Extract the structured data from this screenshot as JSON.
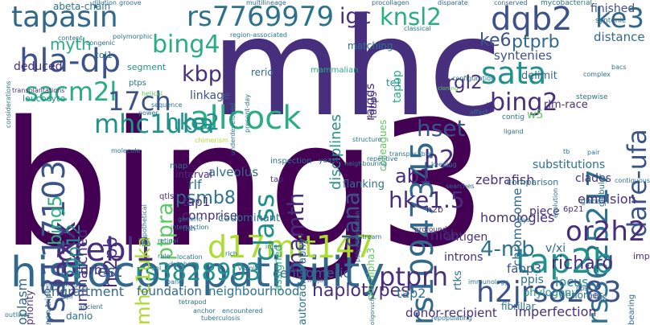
{
  "palette": {
    "dark_purple": "#440154",
    "indigo": "#472f7d",
    "blue": "#3b528b",
    "steel_blue": "#31688e",
    "teal_blue": "#2c728e",
    "teal": "#21918c",
    "green_teal": "#28ae80",
    "green": "#5ec962",
    "yellow_green": "#addc30",
    "light_green": "#90d743"
  },
  "words": [
    {
      "text": "bing3"
    },
    {
      "text": "mhc"
    },
    {
      "text": "histocompatibility"
    },
    {
      "text": "tapasin"
    },
    {
      "text": "rs7769979"
    },
    {
      "text": "hla-dp"
    },
    {
      "text": "dqb2"
    },
    {
      "text": "rs10947345"
    },
    {
      "text": "rs3625217"
    },
    {
      "text": "sata"
    },
    {
      "text": "ke3"
    },
    {
      "text": "allcock"
    },
    {
      "text": "d17mit147"
    },
    {
      "text": "crebl1"
    },
    {
      "text": "tap2b"
    },
    {
      "text": "rs3117103"
    },
    {
      "text": "rs3828903"
    },
    {
      "text": "h2jrs8283"
    },
    {
      "text": "daxx"
    },
    {
      "text": "sacm2l"
    },
    {
      "text": "mhc1uba"
    },
    {
      "text": "17ch"
    },
    {
      "text": "bing4"
    },
    {
      "text": "kbp"
    },
    {
      "text": "knsl2"
    },
    {
      "text": "dare-ufa"
    },
    {
      "text": "bing2"
    },
    {
      "text": "rgl2"
    },
    {
      "text": "igc"
    },
    {
      "text": "ke6"
    },
    {
      "text": "ptprb"
    },
    {
      "text": "hke2"
    },
    {
      "text": "hset"
    },
    {
      "text": "class"
    },
    {
      "text": "ptpra"
    },
    {
      "text": "mhc1uka"
    },
    {
      "text": "mamth"
    },
    {
      "text": "dana"
    },
    {
      "text": "h2"
    },
    {
      "text": "or2h2"
    },
    {
      "text": "hke1.5"
    },
    {
      "text": "ptprh"
    },
    {
      "text": "4-mb"
    },
    {
      "text": "richard"
    },
    {
      "text": "ab1"
    },
    {
      "text": "psmb8"
    },
    {
      "text": "h-2pb"
    },
    {
      "text": "20p12"
    },
    {
      "text": "bing5"
    },
    {
      "text": "myth"
    },
    {
      "text": "deduced"
    },
    {
      "text": "unmatched"
    },
    {
      "text": "est"
    },
    {
      "text": "drb1"
    },
    {
      "text": "centromeric"
    },
    {
      "text": "engraftment"
    },
    {
      "text": "foundation"
    },
    {
      "text": "neighbourhood"
    },
    {
      "text": "haplotypes"
    },
    {
      "text": "tap2"
    },
    {
      "text": "donor-recipient"
    },
    {
      "text": "imperfection"
    },
    {
      "text": "emulsion"
    },
    {
      "text": "homologies"
    },
    {
      "text": "micb"
    },
    {
      "text": "introns"
    },
    {
      "text": "zebrafish"
    },
    {
      "text": "chromosome"
    },
    {
      "text": "distance"
    },
    {
      "text": "syntenies"
    },
    {
      "text": "tapbp"
    },
    {
      "text": "ralgds"
    },
    {
      "text": "linkage"
    },
    {
      "text": "alveolus"
    },
    {
      "text": "disciplines"
    },
    {
      "text": "w5"
    },
    {
      "text": "rlm-race"
    },
    {
      "text": "delimit"
    },
    {
      "text": "fabp3"
    },
    {
      "text": "ppis"
    },
    {
      "text": "v/xi"
    },
    {
      "text": "locus"
    },
    {
      "text": "piece"
    },
    {
      "text": "clades"
    },
    {
      "text": "substitutions"
    },
    {
      "text": "antigen"
    },
    {
      "text": "rlf"
    },
    {
      "text": "tap1"
    },
    {
      "text": "comprise"
    },
    {
      "text": "codominant"
    },
    {
      "text": "assigned"
    },
    {
      "text": "autoradiography"
    },
    {
      "text": "flanking"
    },
    {
      "text": "pro-alpha3"
    },
    {
      "text": "rtks"
    },
    {
      "text": "phylogeny"
    },
    {
      "text": "genomes"
    },
    {
      "text": "fibrillar"
    },
    {
      "text": "transplantations"
    },
    {
      "text": "leucocyte"
    },
    {
      "text": "col1"
    },
    {
      "text": "segment"
    },
    {
      "text": "ptps"
    },
    {
      "text": "interval"
    },
    {
      "text": "colleagues"
    },
    {
      "text": "fabps"
    },
    {
      "text": "matching"
    },
    {
      "text": "rerio"
    },
    {
      "text": "abeta-chain"
    },
    {
      "text": "oplasm"
    },
    {
      "text": "priority"
    },
    {
      "text": "non-triple"
    },
    {
      "text": "danio"
    },
    {
      "text": "imp"
    },
    {
      "text": "bearing"
    },
    {
      "text": "tc1"
    },
    {
      "text": "iii"
    },
    {
      "text": "h2b"
    },
    {
      "text": "6p21"
    },
    {
      "text": "rtk"
    },
    {
      "text": "nh"
    },
    {
      "text": "b6"
    },
    {
      "text": "qtls"
    },
    {
      "text": "fish"
    },
    {
      "text": "tap"
    },
    {
      "text": "map"
    },
    {
      "text": "yeast"
    },
    {
      "text": "profound"
    },
    {
      "text": "searches"
    },
    {
      "text": "comparison"
    },
    {
      "text": "contig"
    },
    {
      "text": "stepwise"
    },
    {
      "text": "evolution"
    },
    {
      "text": "global"
    },
    {
      "text": "globular"
    },
    {
      "text": "contiguous"
    },
    {
      "text": "finished"
    },
    {
      "text": "syntenic"
    },
    {
      "text": "mycobacterial"
    },
    {
      "text": "conserved"
    },
    {
      "text": "disparate"
    },
    {
      "text": "procollagen"
    },
    {
      "text": "multilineage"
    },
    {
      "text": "groove"
    },
    {
      "text": "dilution"
    },
    {
      "text": "considerations"
    },
    {
      "text": "polymorphic"
    },
    {
      "text": "congenic"
    },
    {
      "text": "content"
    },
    {
      "text": "region-associated"
    },
    {
      "text": "classical"
    },
    {
      "text": "complex"
    },
    {
      "text": "bacs"
    },
    {
      "text": "cloning"
    },
    {
      "text": "configuration"
    },
    {
      "text": "mammalian"
    },
    {
      "text": "present-day"
    },
    {
      "text": "underdeveloped"
    },
    {
      "text": "sequence"
    },
    {
      "text": "power"
    },
    {
      "text": "helical"
    },
    {
      "text": "molecule"
    },
    {
      "text": "inspection"
    },
    {
      "text": "structure"
    },
    {
      "text": "transposable"
    },
    {
      "text": "repetitive"
    },
    {
      "text": "neighbouring"
    },
    {
      "text": "keeping"
    },
    {
      "text": "ligand"
    },
    {
      "text": "tb"
    },
    {
      "text": "hypothetical"
    },
    {
      "text": "generic"
    },
    {
      "text": "intersection"
    },
    {
      "text": "database"
    },
    {
      "text": "location"
    },
    {
      "text": "retinal"
    },
    {
      "text": "polyadenylation"
    },
    {
      "text": "upstream"
    },
    {
      "text": "narrowing"
    },
    {
      "text": "vicinity"
    },
    {
      "text": "infer"
    },
    {
      "text": "major"
    },
    {
      "text": "immunology"
    },
    {
      "text": "panel"
    },
    {
      "text": "ancient"
    },
    {
      "text": "outline"
    },
    {
      "text": "tuberculosis"
    },
    {
      "text": "anchor"
    },
    {
      "text": "encountered"
    },
    {
      "text": "repopulating"
    },
    {
      "text": "oligonucleotides"
    },
    {
      "text": "qtl"
    },
    {
      "text": "qol"
    },
    {
      "text": "rule"
    },
    {
      "text": "pps"
    },
    {
      "text": "pair"
    },
    {
      "text": "chimerism"
    },
    {
      "text": "affect"
    },
    {
      "text": "tetrapod"
    },
    {
      "text": "rich"
    },
    {
      "text": "lays"
    }
  ]
}
